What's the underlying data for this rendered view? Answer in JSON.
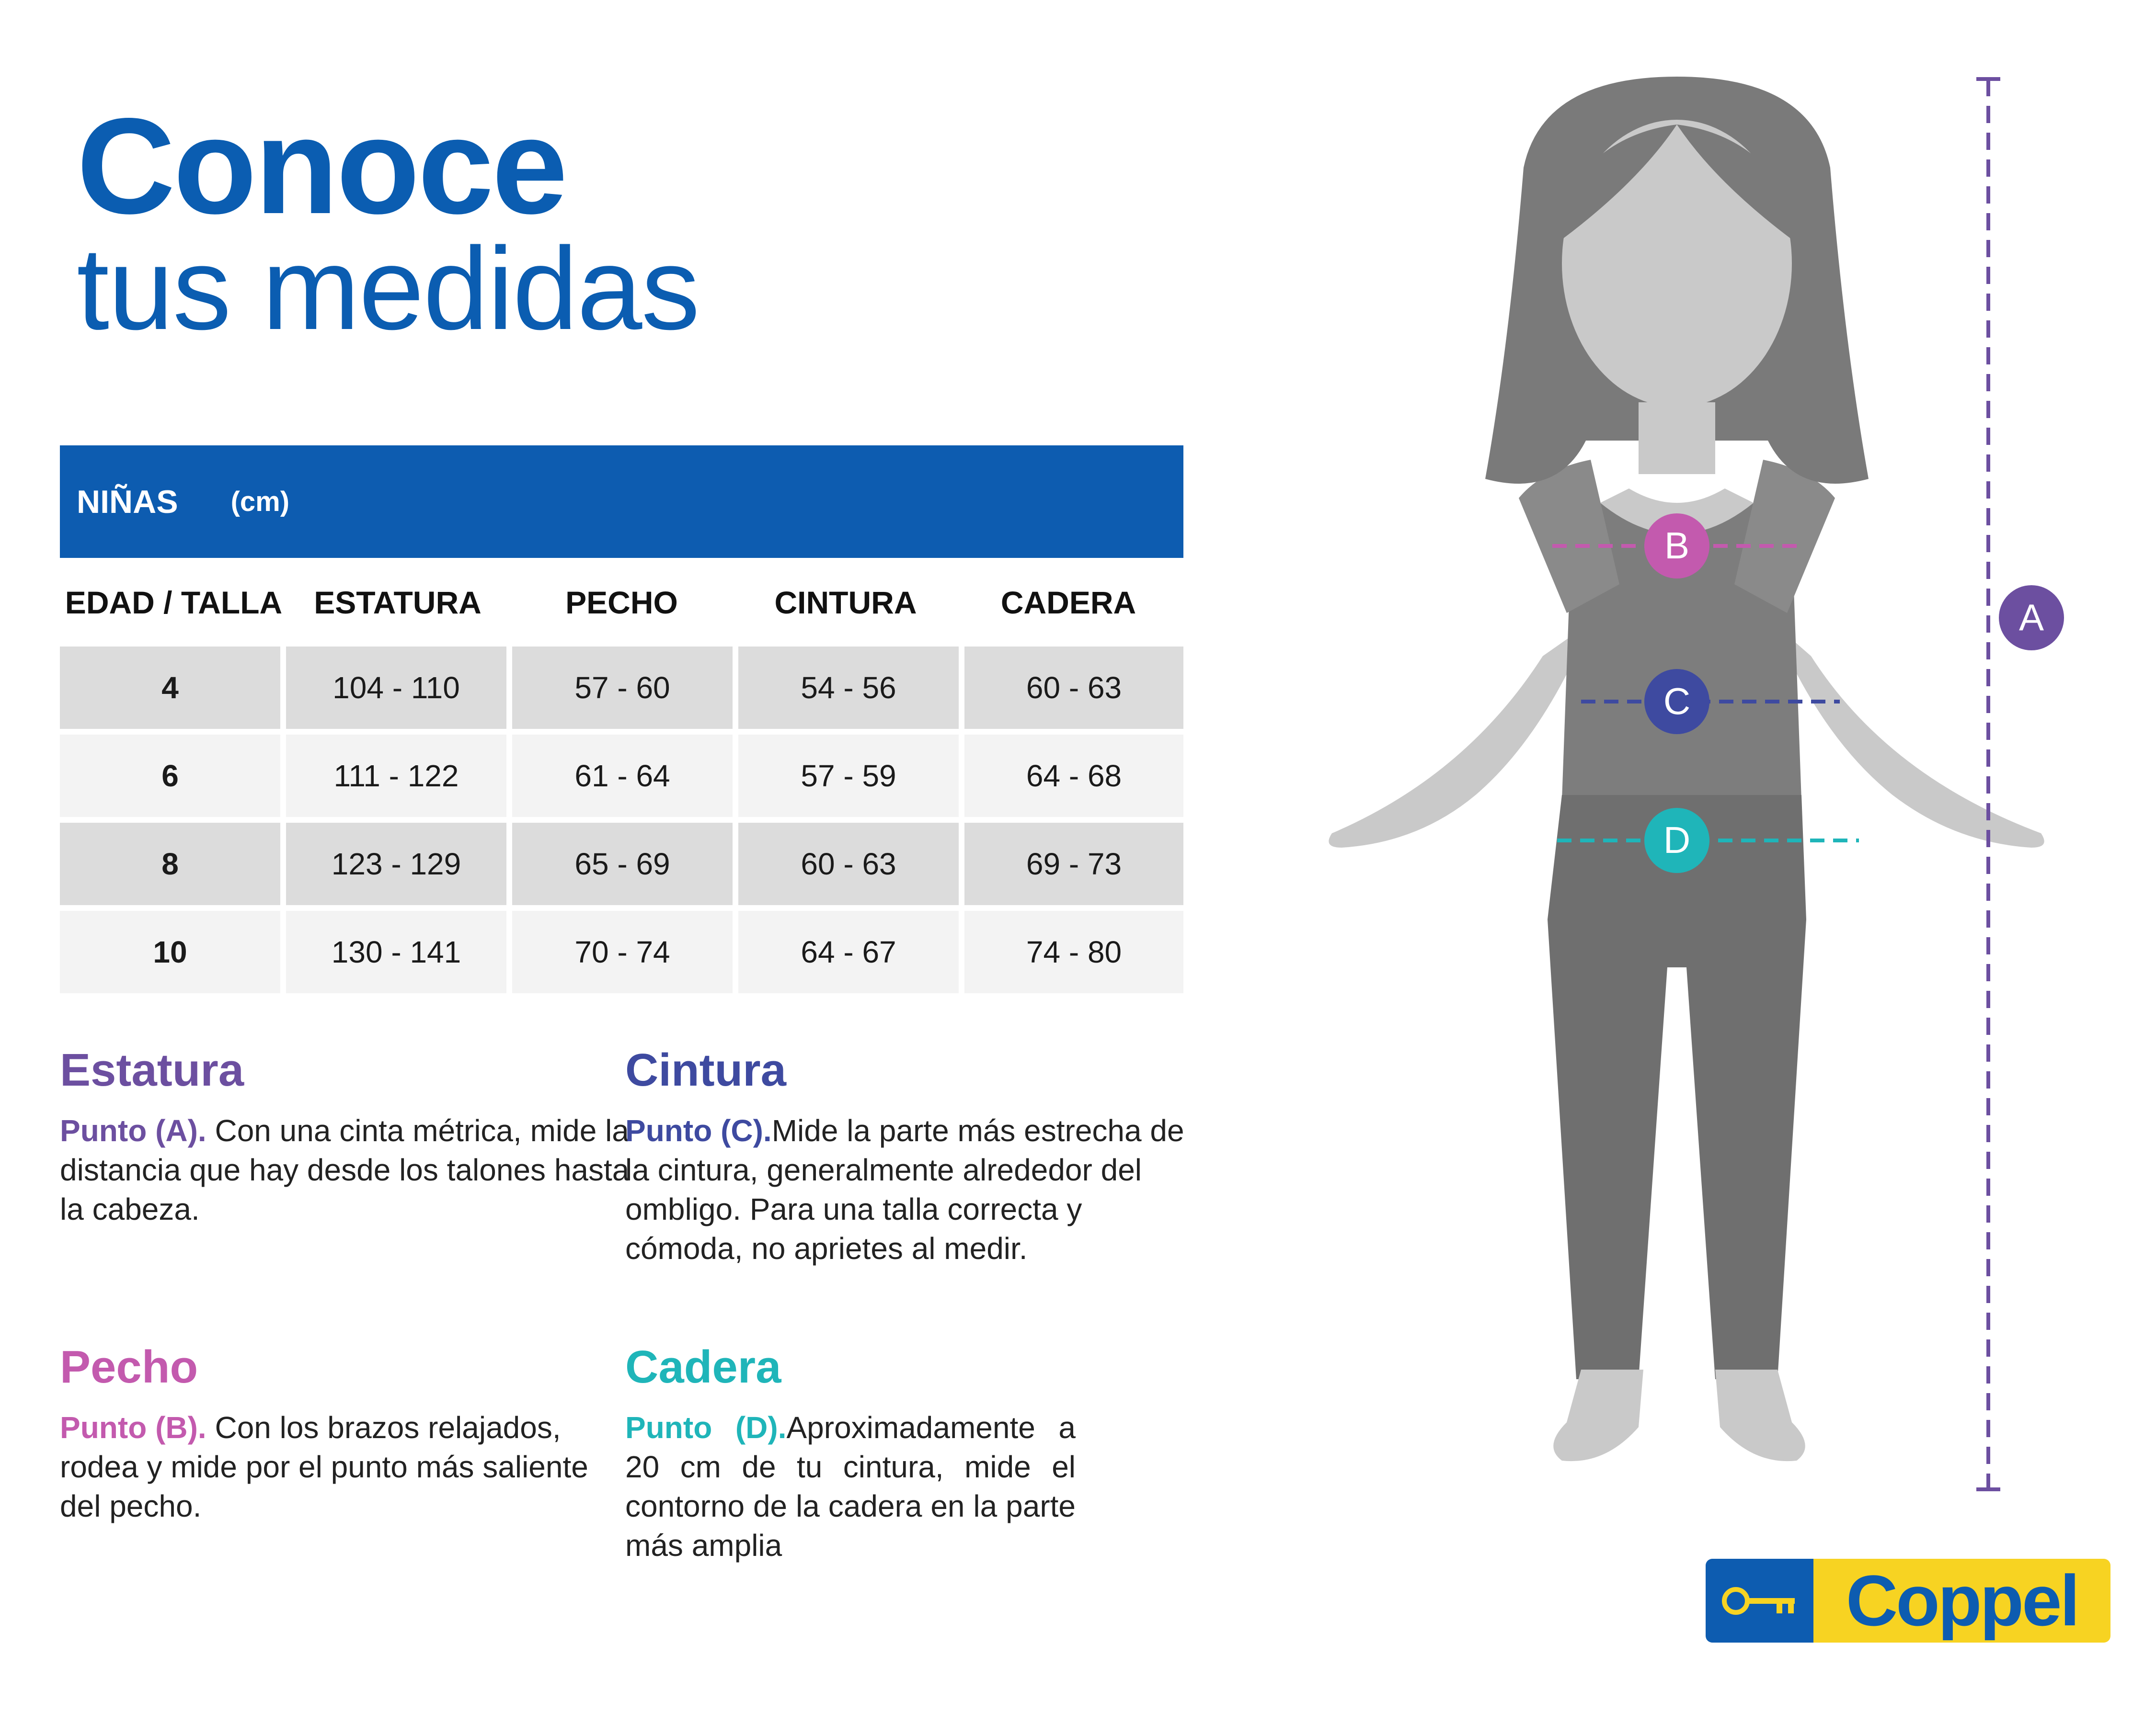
{
  "title": {
    "line1": "Conoce",
    "line2": "tus medidas"
  },
  "table": {
    "header": "NIÑAS",
    "unit": "(cm)",
    "columns": [
      "EDAD / TALLA",
      "ESTATURA",
      "PECHO",
      "CINTURA",
      "CADERA"
    ],
    "rows": [
      [
        "4",
        "104 - 110",
        "57 - 60",
        "54 - 56",
        "60 - 63"
      ],
      [
        "6",
        "111 - 122",
        "61 - 64",
        "57 - 59",
        "64 - 68"
      ],
      [
        "8",
        "123 - 129",
        "65 - 69",
        "60 - 63",
        "69 - 73"
      ],
      [
        "10",
        "130 - 141",
        "70 - 74",
        "64 - 67",
        "74 - 80"
      ]
    ]
  },
  "sections": {
    "estatura": {
      "title": "Estatura",
      "point": "Punto (A).",
      "text": " Con una cinta métrica, mide la distancia que hay desde los talones hasta la cabeza."
    },
    "cintura": {
      "title": "Cintura",
      "point": "Punto (C).",
      "text": "Mide la parte más estrecha de la cintura, generalmente alrededor del ombligo. Para una talla correcta y cómoda, no aprietes al medir."
    },
    "pecho": {
      "title": "Pecho",
      "point": "Punto (B).",
      "text": " Con los brazos relajados, rodea y mide por el punto más saliente del pecho."
    },
    "cadera": {
      "title": "Cadera",
      "point": "Punto (D).",
      "text": "Aproximadamente a 20 cm de tu cintura, mide el contorno de la cadera en la parte más amplia"
    }
  },
  "markers": {
    "a": "A",
    "b": "B",
    "c": "C",
    "d": "D"
  },
  "colors": {
    "brand_blue": "#0d5cb0",
    "estatura": "#6c4fa0",
    "pecho": "#c35aae",
    "cintura": "#3e4aa0",
    "cadera": "#1fb5b9",
    "brand_yellow": "#f7d322"
  },
  "icons": {
    "logo": "key-icon"
  },
  "brand": {
    "name": "Coppel"
  }
}
